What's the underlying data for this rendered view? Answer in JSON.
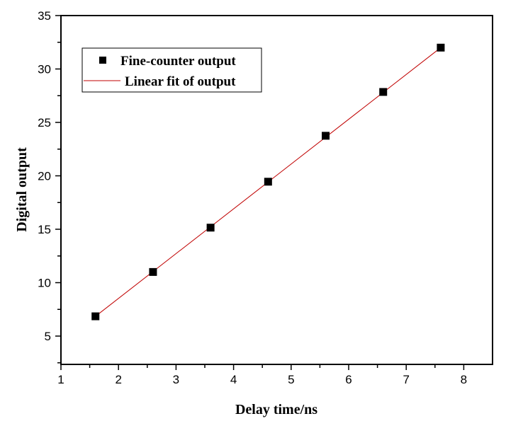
{
  "chart_data": {
    "type": "scatter",
    "title": "",
    "xlabel": "Delay time/ns",
    "ylabel": "Digital output",
    "xlim": [
      1,
      8.5
    ],
    "ylim": [
      2.35,
      35
    ],
    "xticks": [
      1,
      2,
      3,
      4,
      5,
      6,
      7,
      8
    ],
    "xtick_labels": [
      "1",
      "2",
      "3",
      "4",
      "5",
      "6",
      "7",
      "8"
    ],
    "yticks": [
      5,
      10,
      15,
      20,
      25,
      30,
      35
    ],
    "ytick_labels": [
      "5",
      "10",
      "15",
      "20",
      "25",
      "30",
      "35"
    ],
    "grid": false,
    "legend_position": "top-left",
    "series": [
      {
        "name": "Fine-counter output",
        "kind": "scatter",
        "marker": "square",
        "color": "#000000",
        "x": [
          1.6,
          2.6,
          3.6,
          4.6,
          5.6,
          6.6,
          7.6
        ],
        "y": [
          6.85,
          11.0,
          15.15,
          19.45,
          23.75,
          27.85,
          32.0
        ]
      },
      {
        "name": "Linear fit of output",
        "kind": "line",
        "color": "#c00000",
        "x": [
          1.6,
          7.6
        ],
        "y": [
          6.85,
          32.0
        ]
      }
    ]
  }
}
